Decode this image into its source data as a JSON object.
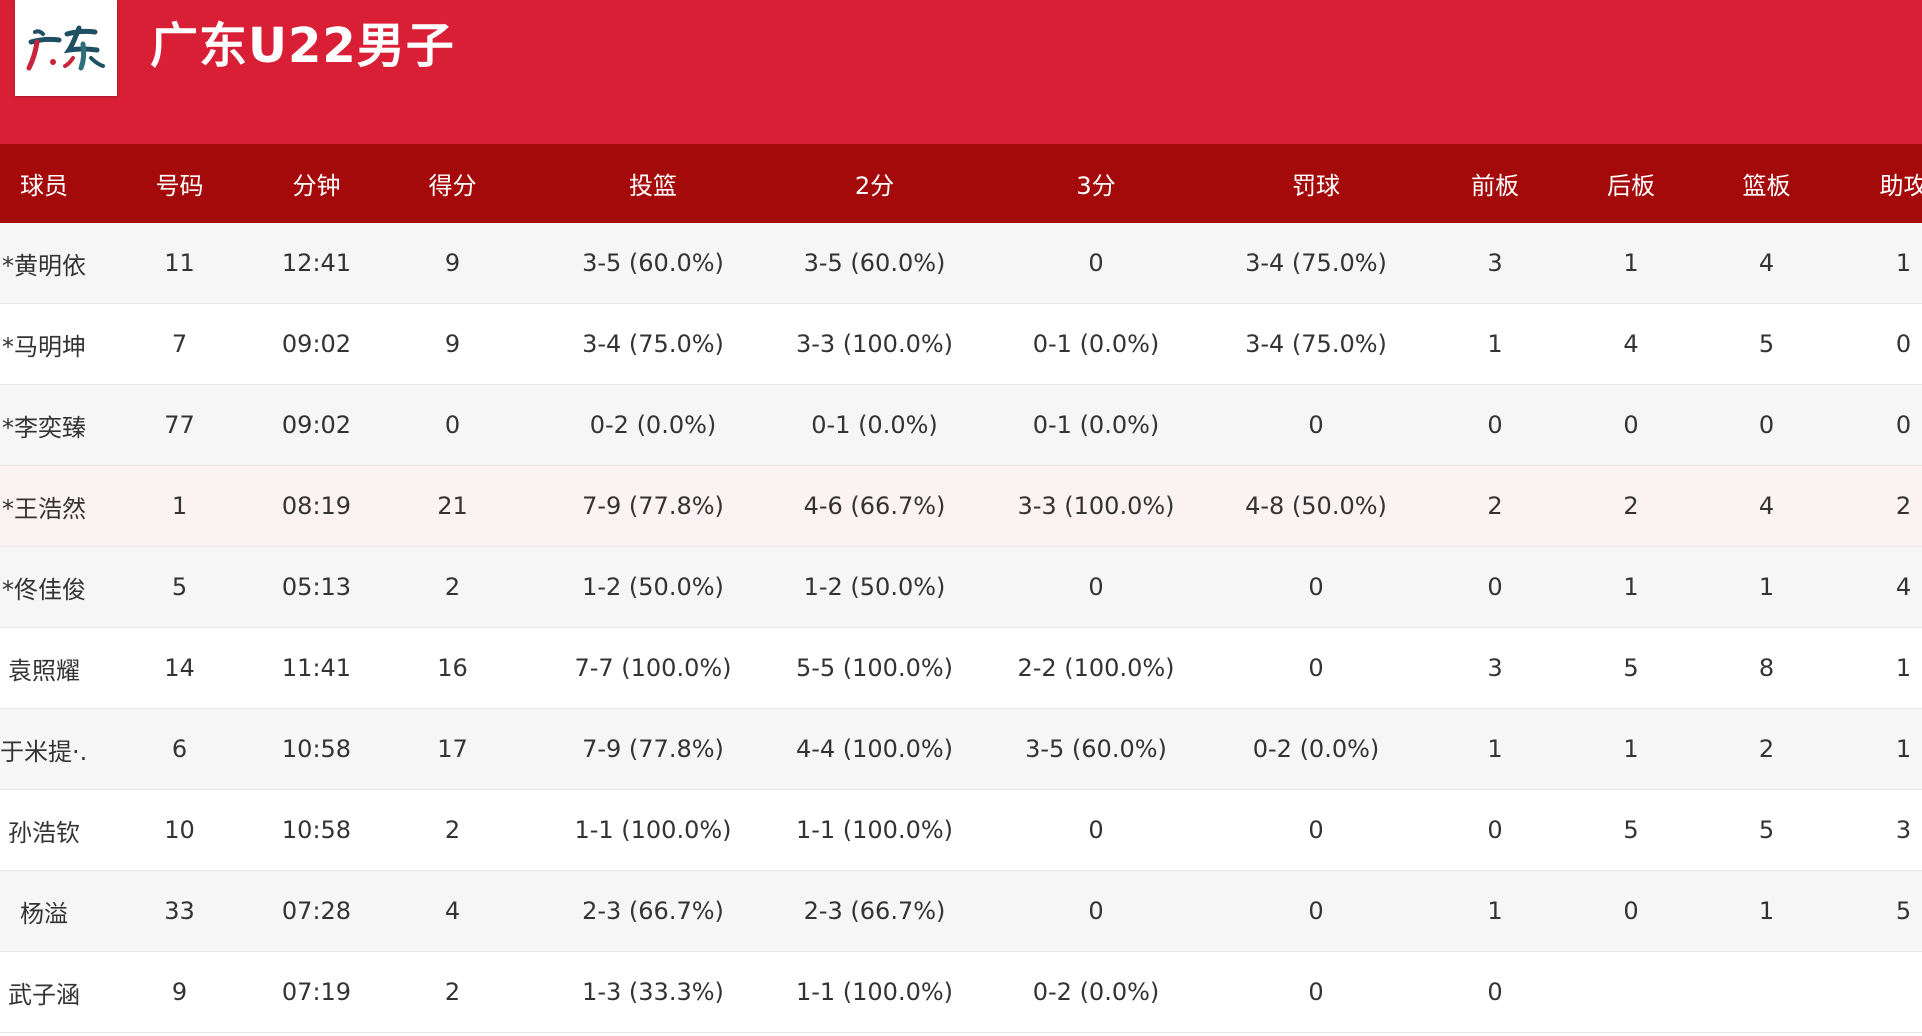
{
  "header": {
    "team_name": "广东U22男子",
    "logo_text": "广东",
    "logo_icon": "team-logo-brush-calligraphy"
  },
  "colors": {
    "header_bg": "#d91f35",
    "table_header_bg": "#a50a0b",
    "highlight_row_bg": "#fbf2f3"
  },
  "table": {
    "columns": [
      "球员",
      "号码",
      "分钟",
      "得分",
      "投篮",
      "2分",
      "3分",
      "罚球",
      "前板",
      "后板",
      "篮板",
      "助攻"
    ],
    "rows": [
      [
        "*黄明依",
        "11",
        "12:41",
        "9",
        "3-5 (60.0%)",
        "3-5 (60.0%)",
        "0",
        "3-4 (75.0%)",
        "3",
        "1",
        "4",
        "1"
      ],
      [
        "*马明坤",
        "7",
        "09:02",
        "9",
        "3-4 (75.0%)",
        "3-3 (100.0%)",
        "0-1 (0.0%)",
        "3-4 (75.0%)",
        "1",
        "4",
        "5",
        "0"
      ],
      [
        "*李奕臻",
        "77",
        "09:02",
        "0",
        "0-2 (0.0%)",
        "0-1 (0.0%)",
        "0-1 (0.0%)",
        "0",
        "0",
        "0",
        "0",
        "0"
      ],
      [
        "*王浩然",
        "1",
        "08:19",
        "21",
        "7-9 (77.8%)",
        "4-6 (66.7%)",
        "3-3 (100.0%)",
        "4-8 (50.0%)",
        "2",
        "2",
        "4",
        "2"
      ],
      [
        "*佟佳俊",
        "5",
        "05:13",
        "2",
        "1-2 (50.0%)",
        "1-2 (50.0%)",
        "0",
        "0",
        "0",
        "1",
        "1",
        "4"
      ],
      [
        "袁照耀",
        "14",
        "11:41",
        "16",
        "7-7 (100.0%)",
        "5-5 (100.0%)",
        "2-2 (100.0%)",
        "0",
        "3",
        "5",
        "8",
        "1"
      ],
      [
        "于米提·..",
        "6",
        "10:58",
        "17",
        "7-9 (77.8%)",
        "4-4 (100.0%)",
        "3-5 (60.0%)",
        "0-2 (0.0%)",
        "1",
        "1",
        "2",
        "1"
      ],
      [
        "孙浩钦",
        "10",
        "10:58",
        "2",
        "1-1 (100.0%)",
        "1-1 (100.0%)",
        "0",
        "0",
        "0",
        "5",
        "5",
        "3"
      ],
      [
        "杨溢",
        "33",
        "07:28",
        "4",
        "2-3 (66.7%)",
        "2-3 (66.7%)",
        "0",
        "0",
        "1",
        "0",
        "1",
        "5"
      ],
      [
        "武子涵",
        "9",
        "07:19",
        "2",
        "1-3 (33.3%)",
        "1-1 (100.0%)",
        "0-2 (0.0%)",
        "0",
        "0",
        "",
        "",
        ""
      ]
    ]
  }
}
